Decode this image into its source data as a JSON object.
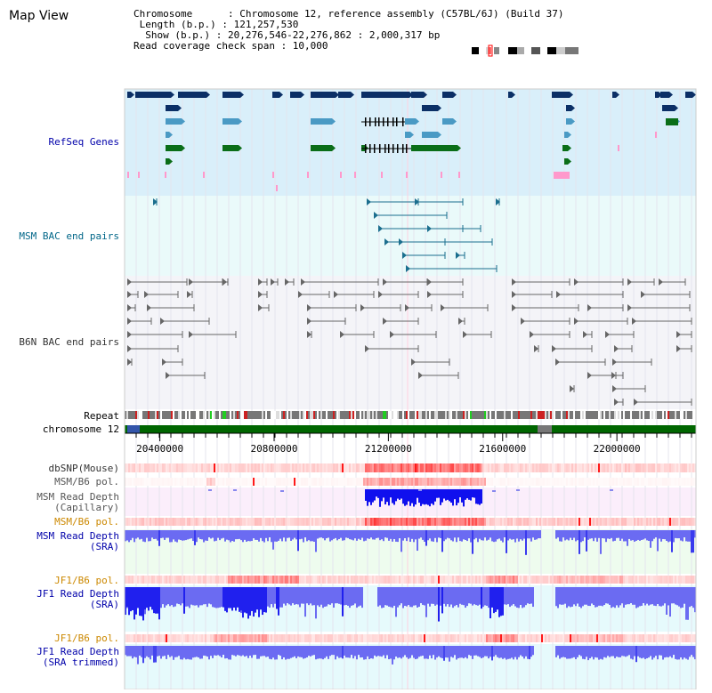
{
  "header": {
    "title": "Map View",
    "info_lines": [
      "Chromosome      : Chromosome 12, reference assembly (C57BL/6J) (Build 37)",
      " Length (b.p.) : 121,257,530",
      "  Show (b.p.) : 20,276,546-22,276,862 : 2,000,317 bp",
      "Read coverage check span : 10,000"
    ]
  },
  "tracks": {
    "refseq": "RefSeq Genes",
    "msm_bac": "MSM BAC end pairs",
    "b6n_bac": "B6N BAC end pairs",
    "repeat": "Repeat",
    "chromosome": "chromosome 12",
    "dbsnp": "dbSNP(Mouse)",
    "msm_b6_pol_1": "MSM/B6 pol.",
    "msm_depth_cap_1": "MSM Read Depth",
    "msm_depth_cap_2": "(Capillary)",
    "msm_b6_pol_2": "MSM/B6 pol.",
    "msm_depth_sra_1": "MSM Read Depth",
    "msm_depth_sra_2": "(SRA)",
    "jf1_b6_pol_1": "JF1/B6 pol.",
    "jf1_depth_sra_1": "JF1 Read Depth",
    "jf1_depth_sra_2": "(SRA)",
    "jf1_b6_pol_2": "JF1/B6 pol.",
    "jf1_depth_trim_1": "JF1 Read Depth",
    "jf1_depth_trim_2": "(SRA trimmed)"
  },
  "axis": {
    "ticks": [
      "20400000",
      "20800000",
      "21200000",
      "21600000",
      "22000000"
    ],
    "tick_values": [
      20400000,
      20800000,
      21200000,
      21600000,
      22000000
    ],
    "start": 20276546,
    "end": 22276862
  },
  "colors": {
    "refseq_bg": "#d9effa",
    "bac_bg": "#eafafa",
    "msm_line": "#1b6e8e",
    "b6n_line": "#666666",
    "gene_dark": "#0b2f66",
    "gene_mid": "#4a9ac4",
    "gene_green": "#0a6e18",
    "gene_pink": "#ff99cc",
    "depth_blue": "#6b6bf2",
    "depth_dark": "#2020ee",
    "chrom_green": "#006600",
    "label_blue": "#0000aa",
    "label_teal": "#006688",
    "label_orange": "#cc8800"
  }
}
